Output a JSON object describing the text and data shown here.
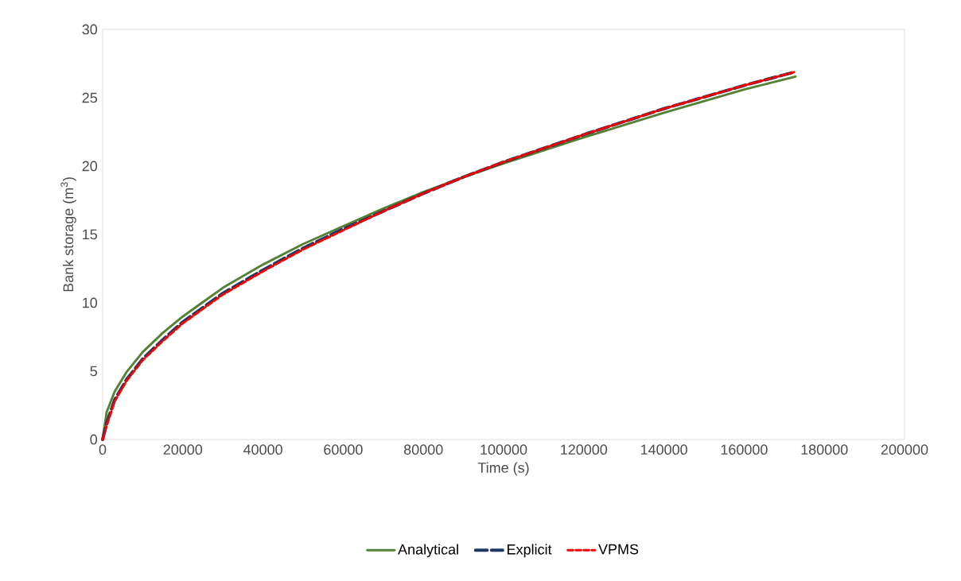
{
  "chart_data": {
    "type": "line",
    "xlabel": "Time (s)",
    "ylabel": "Bank storage (m$^{3}$)",
    "xlim": [
      0,
      200000
    ],
    "ylim": [
      0,
      30
    ],
    "xticks": [
      0,
      20000,
      40000,
      60000,
      80000,
      100000,
      120000,
      140000,
      160000,
      180000,
      200000
    ],
    "yticks": [
      0,
      5,
      10,
      15,
      20,
      25,
      30
    ],
    "x": [
      0,
      1000,
      3000,
      6000,
      10000,
      15000,
      20000,
      30000,
      40000,
      50000,
      60000,
      70000,
      80000,
      90000,
      100000,
      120000,
      140000,
      160000,
      172800
    ],
    "series": [
      {
        "name": "Analytical",
        "color": "#548235",
        "line_style": "solid",
        "values": [
          0,
          2.0,
          3.5,
          4.95,
          6.4,
          7.8,
          9.0,
          11.1,
          12.8,
          14.3,
          15.6,
          16.9,
          18.1,
          19.2,
          20.2,
          22.1,
          23.9,
          25.6,
          26.55
        ]
      },
      {
        "name": "Explicit",
        "color": "#1f3864",
        "line_style": "dashed",
        "values": [
          0,
          1.2,
          2.9,
          4.4,
          5.9,
          7.3,
          8.6,
          10.7,
          12.4,
          14.0,
          15.4,
          16.7,
          18.0,
          19.2,
          20.3,
          22.3,
          24.2,
          25.9,
          26.9
        ]
      },
      {
        "name": "VPMS",
        "color": "#ff0000",
        "line_style": "dotted",
        "values": [
          0,
          1.0,
          2.8,
          4.3,
          5.8,
          7.2,
          8.5,
          10.6,
          12.3,
          13.9,
          15.3,
          16.7,
          18.0,
          19.2,
          20.3,
          22.3,
          24.2,
          25.9,
          26.9
        ]
      }
    ],
    "legend": "bottom",
    "grid": false,
    "marker": "none"
  }
}
